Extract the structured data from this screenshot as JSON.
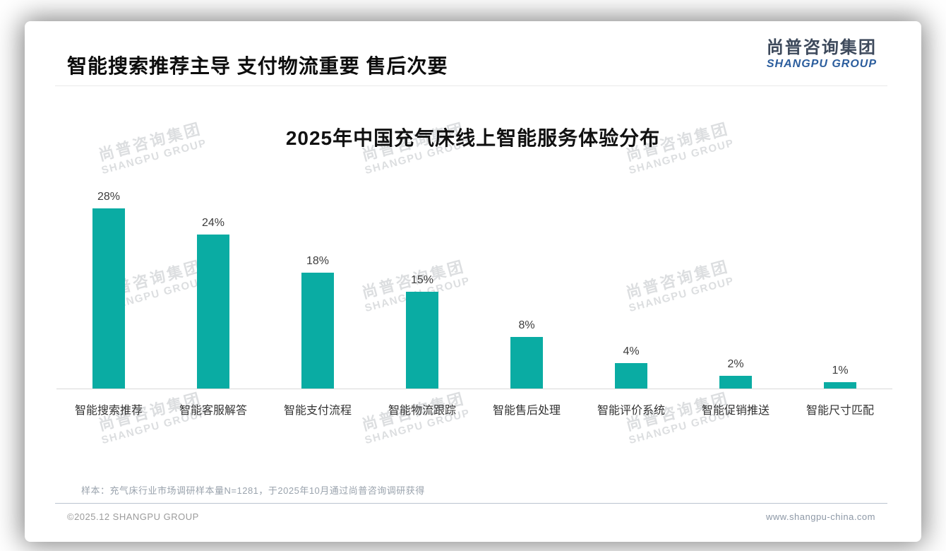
{
  "page": {
    "main_title": "智能搜索推荐主导 支付物流重要 售后次要",
    "logo": {
      "cn": "尚普咨询集团",
      "en": "SHANGPU GROUP"
    },
    "note": "样本：充气床行业市场调研样本量N=1281，于2025年10月通过尚普咨询调研获得",
    "footer": {
      "left": "©2025.12 SHANGPU GROUP",
      "right": "www.shangpu-china.com"
    },
    "watermark": {
      "cn": "尚普咨询集团",
      "en": "SHANGPU GROUP"
    }
  },
  "colors": {
    "bar_teal": "#0aaca3",
    "logo_blue": "#2b5d9d",
    "logo_dark": "#3e4a5c",
    "axis_line": "#d9d9d9",
    "value_label": "#3d3d3d"
  },
  "chart_data": {
    "type": "bar",
    "title": "2025年中国充气床线上智能服务体验分布",
    "categories": [
      "智能搜索推荐",
      "智能客服解答",
      "智能支付流程",
      "智能物流跟踪",
      "智能售后处理",
      "智能评价系统",
      "智能促销推送",
      "智能尺寸匹配"
    ],
    "values": [
      28,
      24,
      18,
      15,
      8,
      4,
      2,
      1
    ],
    "unit": "%",
    "value_labels_shown": true,
    "xlabel": "",
    "ylabel": "",
    "ylim": [
      0,
      30
    ],
    "grid": false,
    "legend": "none",
    "bar_color": "#0aaca3"
  }
}
